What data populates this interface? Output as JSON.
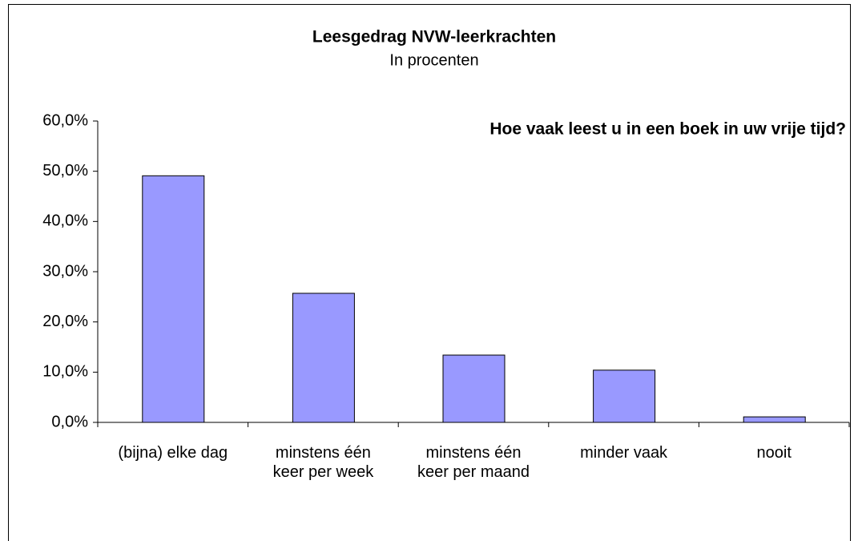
{
  "chart_data": {
    "type": "bar",
    "title": "Leesgedrag NVW-leerkrachten",
    "subtitle": "In procenten",
    "annotation": "Hoe vaak leest u in een boek in uw vrije tijd?",
    "categories": [
      "(bijna) elke dag",
      "minstens één keer per week",
      "minstens één keer per maand",
      "minder vaak",
      "nooit"
    ],
    "values": [
      49.1,
      25.7,
      13.4,
      10.4,
      1.1
    ],
    "color": "#9999ff",
    "ylim": [
      0,
      60
    ],
    "yticks": [
      {
        "value": 0,
        "label": "0,0%"
      },
      {
        "value": 10,
        "label": "10,0%"
      },
      {
        "value": 20,
        "label": "20,0%"
      },
      {
        "value": 30,
        "label": "30,0%"
      },
      {
        "value": 40,
        "label": "40,0%"
      },
      {
        "value": 50,
        "label": "50,0%"
      },
      {
        "value": 60,
        "label": "60,0%"
      }
    ],
    "grid": false
  }
}
